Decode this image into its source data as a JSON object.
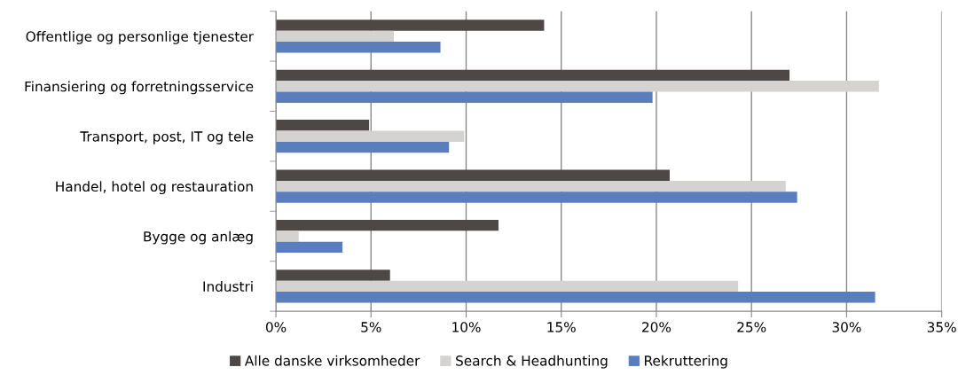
{
  "chart_data": {
    "type": "bar",
    "orientation": "horizontal",
    "categories": [
      "Offentlige og personlige tjenester",
      "Finansiering og forretningsservice",
      "Transport, post, IT og tele",
      "Handel, hotel og restauration",
      "Bygge og anlæg",
      "Industri"
    ],
    "series": [
      {
        "name": "Alle danske virksomheder",
        "color": "#4d4845",
        "values": [
          14.1,
          27.0,
          4.9,
          20.7,
          11.7,
          6.0
        ]
      },
      {
        "name": "Search & Headhunting",
        "color": "#d4d3d1",
        "values": [
          6.2,
          31.7,
          9.9,
          26.8,
          1.2,
          24.3
        ]
      },
      {
        "name": "Rekruttering",
        "color": "#5a7dbd",
        "values": [
          8.65,
          19.8,
          9.1,
          27.4,
          3.5,
          31.5
        ]
      }
    ],
    "xlim": [
      0,
      35
    ],
    "xticks": [
      {
        "value": 0,
        "label": "0%"
      },
      {
        "value": 5,
        "label": "5%"
      },
      {
        "value": 10,
        "label": "10%"
      },
      {
        "value": 15,
        "label": "15%"
      },
      {
        "value": 20,
        "label": "20%"
      },
      {
        "value": 25,
        "label": "25%"
      },
      {
        "value": 30,
        "label": "30%"
      },
      {
        "value": 35,
        "label": "35%"
      }
    ],
    "grid": "x",
    "legend": "bottom"
  }
}
